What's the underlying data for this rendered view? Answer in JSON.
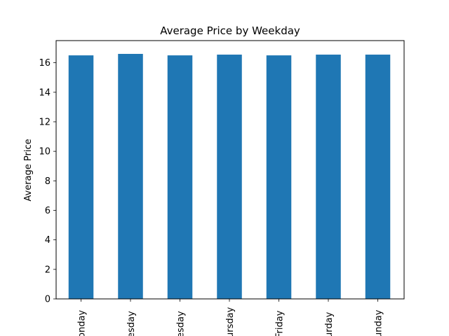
{
  "chart_data": {
    "type": "bar",
    "title": "Average Price by Weekday",
    "xlabel": "",
    "ylabel": "Average Price",
    "categories": [
      "Monday",
      "Tuesday",
      "Wednesday",
      "Thursday",
      "Friday",
      "Saturday",
      "Sunday"
    ],
    "category_labels_visible": [
      "onday",
      "esday",
      "esday",
      "ursday",
      "Friday",
      "urday",
      "unday"
    ],
    "values": [
      16.5,
      16.6,
      16.5,
      16.55,
      16.5,
      16.55,
      16.55
    ],
    "ylim": [
      0,
      17.5
    ],
    "yticks": [
      0,
      2,
      4,
      6,
      8,
      10,
      12,
      14,
      16
    ],
    "bar_color": "#1f77b4",
    "grid": false,
    "legend": "none"
  }
}
